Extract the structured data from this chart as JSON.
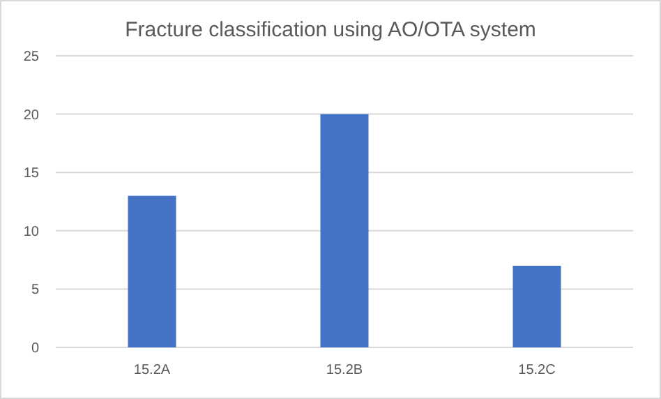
{
  "chart_data": {
    "type": "bar",
    "title": "Fracture classification using AO/OTA system",
    "categories": [
      "15.2A",
      "15.2B",
      "15.2C"
    ],
    "values": [
      13,
      20,
      7
    ],
    "color": "#4472c4",
    "ylim": [
      0,
      25
    ],
    "yticks": [
      0,
      5,
      10,
      15,
      20,
      25
    ],
    "grid": "y"
  }
}
